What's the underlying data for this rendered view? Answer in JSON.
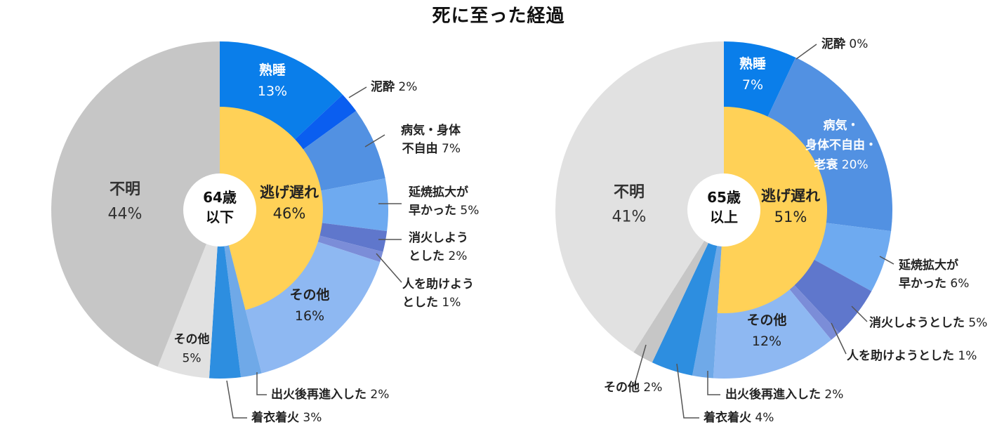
{
  "title": "死に至った経過",
  "chart_data": [
    {
      "type": "pie",
      "center_label": [
        "64歳",
        "以下"
      ],
      "inner": {
        "label": "逃げ遅れ",
        "value": 46,
        "color": "#FFD157"
      },
      "slices": [
        {
          "label": [
            "熟睡"
          ],
          "value": 13,
          "color": "#0A7EEA"
        },
        {
          "label": [
            "泥酔"
          ],
          "value": 2,
          "color": "#0A5EF0"
        },
        {
          "label": [
            "病気・身体",
            "不自由"
          ],
          "value": 7,
          "color": "#5291E2"
        },
        {
          "label": [
            "延焼拡大が",
            "早かった"
          ],
          "value": 5,
          "color": "#6EAAF0"
        },
        {
          "label": [
            "消火しよう",
            "とした"
          ],
          "value": 2,
          "color": "#5F77CC"
        },
        {
          "label": [
            "人を助けよう",
            "とした"
          ],
          "value": 1,
          "color": "#7B8DD8"
        },
        {
          "label": [
            "その他"
          ],
          "value": 16,
          "color": "#8EB8F2"
        },
        {
          "label": [
            "出火後再進入した"
          ],
          "value": 2,
          "color": "#6FA9E8"
        },
        {
          "label": [
            "着衣着火"
          ],
          "value": 3,
          "color": "#2D8EE0"
        },
        {
          "label": [
            "その他"
          ],
          "value": 5,
          "color": "#E1E1E1"
        },
        {
          "label": [
            "不明"
          ],
          "value": 44,
          "color": "#C6C6C6"
        }
      ]
    },
    {
      "type": "pie",
      "center_label": [
        "65歳",
        "以上"
      ],
      "inner": {
        "label": "逃げ遅れ",
        "value": 51,
        "color": "#FFD157"
      },
      "slices": [
        {
          "label": [
            "熟睡"
          ],
          "value": 7,
          "color": "#0A7EEA"
        },
        {
          "label": [
            "泥酔"
          ],
          "value": 0,
          "color": "#0A5EF0"
        },
        {
          "label": [
            "病気・",
            "身体不自由・",
            "老衰"
          ],
          "value": 20,
          "color": "#5291E2"
        },
        {
          "label": [
            "延焼拡大が",
            "早かった"
          ],
          "value": 6,
          "color": "#6EAAF0"
        },
        {
          "label": [
            "消火しようとした"
          ],
          "value": 5,
          "color": "#5F77CC"
        },
        {
          "label": [
            "人を助けようとした"
          ],
          "value": 1,
          "color": "#7B8DD8"
        },
        {
          "label": [
            "その他"
          ],
          "value": 12,
          "color": "#8EB8F2"
        },
        {
          "label": [
            "出火後再進入した"
          ],
          "value": 2,
          "color": "#6FA9E8"
        },
        {
          "label": [
            "着衣着火"
          ],
          "value": 4,
          "color": "#2D8EE0"
        },
        {
          "label": [
            "その他"
          ],
          "value": 2,
          "color": "#C6C6C6"
        },
        {
          "label": [
            "不明"
          ],
          "value": 41,
          "color": "#E1E1E1"
        }
      ]
    }
  ]
}
